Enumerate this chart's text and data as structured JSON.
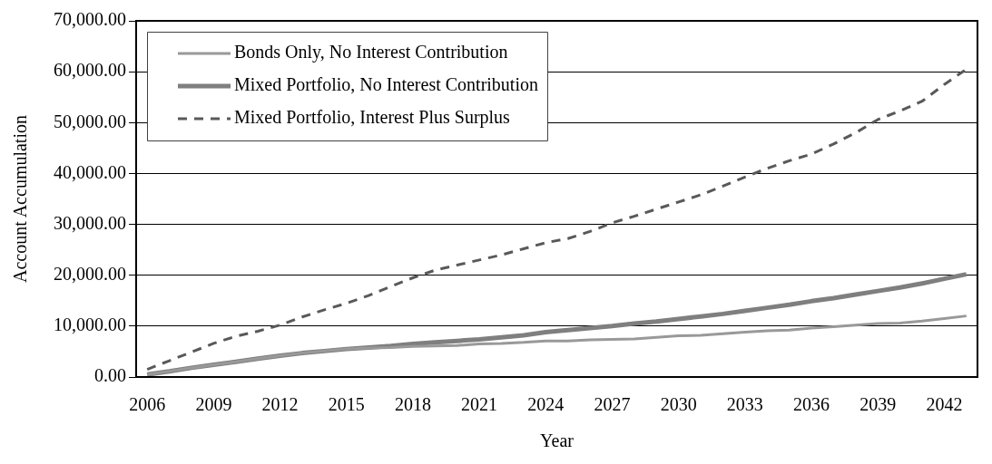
{
  "chart_data": {
    "type": "line",
    "xlabel": "Year",
    "ylabel": "Account Accumulation",
    "categories": [
      "2006",
      null,
      null,
      "2009",
      null,
      null,
      "2012",
      null,
      null,
      "2015",
      null,
      null,
      "2018",
      null,
      null,
      "2021",
      null,
      null,
      "2024",
      null,
      null,
      "2027",
      null,
      null,
      "2030",
      null,
      null,
      "2033",
      null,
      null,
      "2036",
      null,
      null,
      "2039",
      null,
      null,
      "2042",
      null
    ],
    "series": [
      {
        "name": "Bonds Only, No Interest Contribution",
        "color": "#999999",
        "line_style": "solid",
        "values": [
          500,
          1100,
          1800,
          2400,
          3000,
          3600,
          4200,
          4700,
          5100,
          5500,
          5700,
          5800,
          6000,
          6100,
          6200,
          6500,
          6600,
          6800,
          7100,
          7100,
          7300,
          7400,
          7500,
          7800,
          8100,
          8200,
          8500,
          8800,
          9100,
          9200,
          9600,
          9900,
          10200,
          10500,
          10600,
          11000,
          11500,
          12000
        ]
      },
      {
        "name": "Mixed Portfolio, No Interest Contribution",
        "color": "#7f7f7f",
        "line_style": "solid",
        "values": [
          500,
          1100,
          1800,
          2400,
          3000,
          3600,
          4200,
          4700,
          5100,
          5500,
          5800,
          6100,
          6500,
          6800,
          7100,
          7400,
          7800,
          8200,
          8800,
          9200,
          9600,
          10000,
          10500,
          10900,
          11400,
          11900,
          12400,
          13000,
          13600,
          14200,
          14900,
          15500,
          16200,
          16900,
          17600,
          18400,
          19300,
          20200
        ]
      },
      {
        "name": "Mixed Portfolio, Interest Plus Surplus",
        "color": "#595959",
        "line_style": "dashed",
        "values": [
          1500,
          3200,
          4900,
          6600,
          8000,
          9000,
          10200,
          11800,
          13200,
          14500,
          16000,
          17800,
          19500,
          21000,
          22000,
          23000,
          24000,
          25200,
          26400,
          27200,
          28600,
          30300,
          31600,
          33000,
          34400,
          35800,
          37500,
          39300,
          41000,
          42500,
          43800,
          45800,
          48000,
          50600,
          52300,
          54200,
          57500,
          60500
        ]
      }
    ],
    "ylim": [
      0,
      70000
    ],
    "yticks": [
      {
        "value": 0,
        "label": "0.00"
      },
      {
        "value": 10000,
        "label": "10,000.00"
      },
      {
        "value": 20000,
        "label": "20,000.00"
      },
      {
        "value": 30000,
        "label": "30,000.00"
      },
      {
        "value": 40000,
        "label": "40,000.00"
      },
      {
        "value": 50000,
        "label": "50,000.00"
      },
      {
        "value": 60000,
        "label": "60,000.00"
      },
      {
        "value": 70000,
        "label": "70,000.00"
      }
    ],
    "grid": "y",
    "legend": "top left",
    "marker": "none"
  }
}
